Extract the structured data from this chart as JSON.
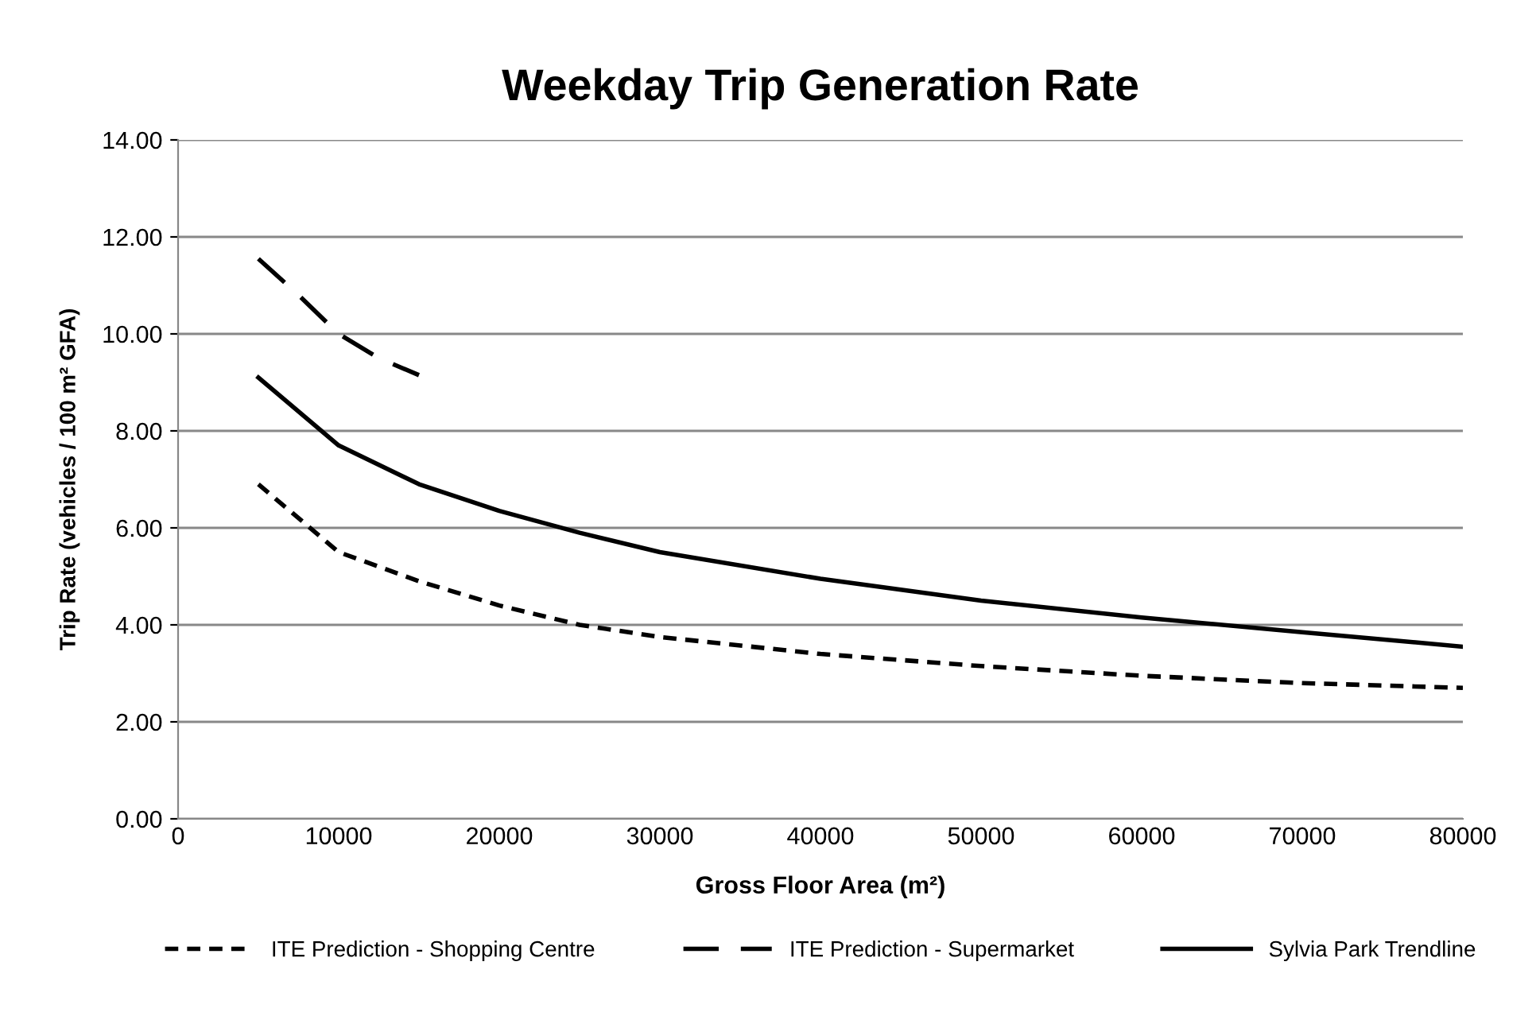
{
  "chart_data": {
    "type": "line",
    "title": "Weekday Trip Generation Rate",
    "xlabel": "Gross Floor Area (m²)",
    "ylabel": "Trip Rate (vehicles / 100 m² GFA)",
    "xlim": [
      0,
      80000
    ],
    "xticks": [
      0,
      10000,
      20000,
      30000,
      40000,
      50000,
      60000,
      70000,
      80000
    ],
    "ylim": [
      0,
      14
    ],
    "yticks": [
      {
        "value": 0,
        "label": "0.00"
      },
      {
        "value": 2,
        "label": "2.00"
      },
      {
        "value": 4,
        "label": "4.00"
      },
      {
        "value": 6,
        "label": "6.00"
      },
      {
        "value": 8,
        "label": "8.00"
      },
      {
        "value": 10,
        "label": "10.00"
      },
      {
        "value": 12,
        "label": "12.00"
      },
      {
        "value": 14,
        "label": "14.00"
      }
    ],
    "grid": "y",
    "legend": "bottom",
    "marker": "none",
    "series": [
      {
        "name": "ITE Prediction - Shopping Centre",
        "color": "#000000",
        "line_style": "dotted",
        "x": [
          5000,
          10000,
          15000,
          20000,
          25000,
          30000,
          40000,
          50000,
          60000,
          70000,
          80000
        ],
        "values": [
          6.9,
          5.5,
          4.9,
          4.4,
          4.0,
          3.75,
          3.4,
          3.15,
          2.95,
          2.8,
          2.7
        ]
      },
      {
        "name": "ITE Prediction - Supermarket",
        "color": "#000000",
        "line_style": "dashed",
        "x": [
          5000,
          7500,
          10000,
          12500,
          15000
        ],
        "values": [
          11.55,
          10.8,
          10.0,
          9.5,
          9.15
        ]
      },
      {
        "name": "Sylvia Park Trendline",
        "color": "#000000",
        "line_style": "solid",
        "x": [
          5000,
          10000,
          15000,
          20000,
          25000,
          30000,
          40000,
          50000,
          60000,
          70000,
          80000
        ],
        "values": [
          9.1,
          7.7,
          6.9,
          6.35,
          5.9,
          5.5,
          4.95,
          4.5,
          4.15,
          3.85,
          3.55
        ]
      }
    ]
  }
}
